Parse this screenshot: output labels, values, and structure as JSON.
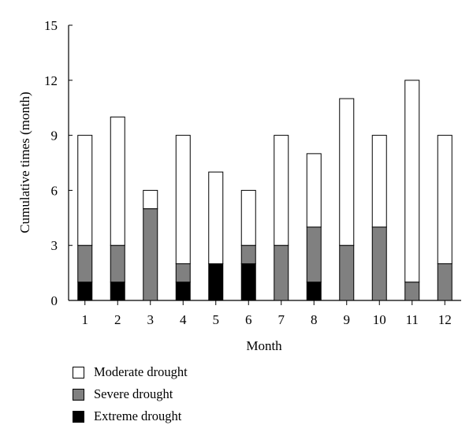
{
  "chart_data": {
    "type": "bar",
    "stacked": true,
    "xlabel": "Month",
    "ylabel": "Cumulative times (month)",
    "ylim": [
      0,
      15
    ],
    "yticks": [
      0,
      3,
      6,
      9,
      12,
      15
    ],
    "categories": [
      "1",
      "2",
      "3",
      "4",
      "5",
      "6",
      "7",
      "8",
      "9",
      "10",
      "11",
      "12"
    ],
    "series": [
      {
        "name": "Extreme drought",
        "color": "#000000",
        "values": [
          1,
          1,
          0,
          1,
          2,
          2,
          0,
          1,
          0,
          0,
          0,
          0
        ]
      },
      {
        "name": "Severe drought",
        "color": "#808080",
        "values": [
          2,
          2,
          5,
          1,
          0,
          1,
          3,
          3,
          3,
          4,
          1,
          2
        ]
      },
      {
        "name": "Moderate drought",
        "color": "#ffffff",
        "values": [
          6,
          7,
          1,
          7,
          5,
          3,
          6,
          4,
          8,
          5,
          11,
          7
        ]
      }
    ],
    "legend_order": [
      "Moderate drought",
      "Severe drought",
      "Extreme drought"
    ],
    "legend_position": "bottom-left",
    "grid": false
  }
}
